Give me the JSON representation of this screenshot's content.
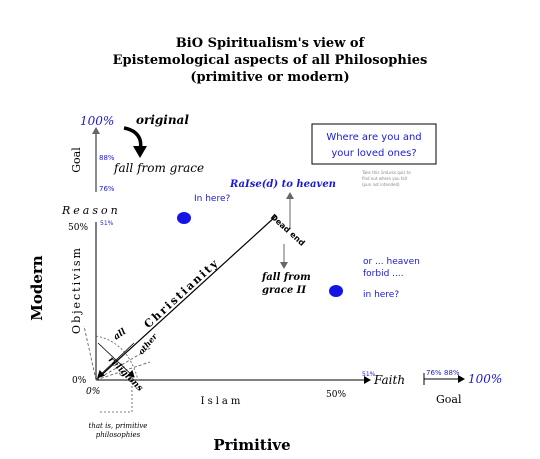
{
  "title": {
    "line1": "BiO Spiritualism's view of",
    "line2": "Epistemological aspects of all Philosophies",
    "line3": "(primitive or modern)"
  },
  "goal_gauge": {
    "top_pct": "100%",
    "mid_pct": "88%",
    "low_pct": "76%",
    "label": "Goal",
    "original": "original",
    "fall": "fall from grace"
  },
  "callout": {
    "line1": "Where are you and",
    "line2": "your loved ones?",
    "note_line1": "Take this 1mLess quiz to",
    "note_line2": "find out where you fall",
    "note_line3": "(pun not intended)"
  },
  "axes": {
    "y_title": "Modern",
    "y_axis": "Objectivism",
    "y_top": "Reason",
    "y_50": "50%",
    "y_51": "51%",
    "origin_0": "0%",
    "origin_0b": "0%",
    "x_title": "Primitive",
    "x_axis": "Islam",
    "x_end": "Faith",
    "x_50": "50%",
    "x_51": "51%"
  },
  "x_goal": {
    "p76": "76%",
    "p88": "88%",
    "p100": "100%",
    "label": "Goal"
  },
  "annotations": {
    "raised": "RaIse(d) to heaven",
    "dead_end": "Dead end",
    "fall2_line1": "fall from",
    "fall2_line2": "grace II",
    "christianity": "Christianity",
    "all_religions_a": "all",
    "all_religions_b": "religions",
    "other": "other",
    "primitive_note_line1": "that is, primitive",
    "primitive_note_line2": "philosophies",
    "in_here_1": "In here?",
    "or_heaven_line1": "or ... heaven",
    "or_heaven_line2": "forbid ....",
    "in_here_2": "in here?"
  },
  "colors": {
    "blue": "#1a1ad6",
    "dot": "#1414e6",
    "ink": "#000000",
    "gray": "#8a8a8a"
  }
}
